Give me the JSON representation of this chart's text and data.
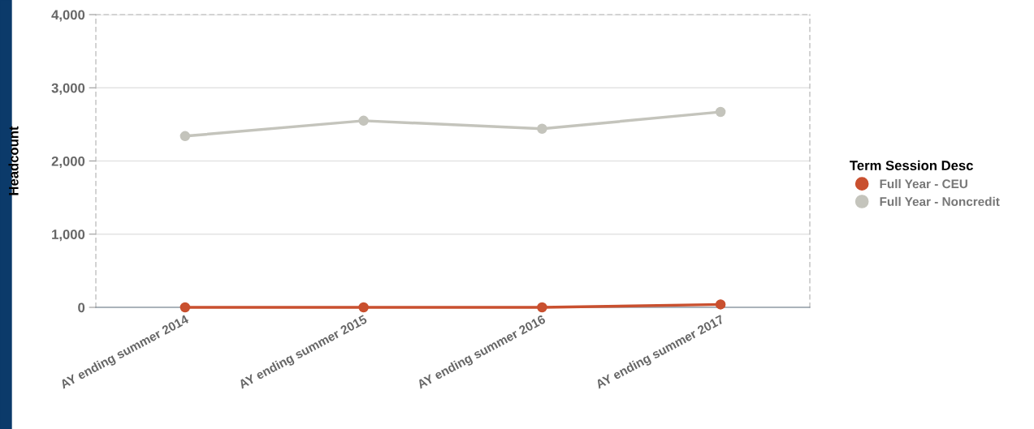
{
  "chart_data": {
    "type": "line",
    "ylabel": "Headcount",
    "legend_title": "Term Session Desc",
    "legend": "right",
    "grid": "y",
    "marker": "circle",
    "line_style": "solid",
    "categories": [
      "AY ending summer 2014",
      "AY ending summer 2015",
      "AY ending summer 2016",
      "AY ending summer 2017"
    ],
    "ylim": [
      0,
      4000
    ],
    "yticks": [
      {
        "value": 0,
        "label": "0"
      },
      {
        "value": 1000,
        "label": "1,000"
      },
      {
        "value": 2000,
        "label": "2,000"
      },
      {
        "value": 3000,
        "label": "3,000"
      },
      {
        "value": 4000,
        "label": "4,000"
      }
    ],
    "series": [
      {
        "name": "Full Year - CEU",
        "color": "#c9502f",
        "values": [
          0,
          0,
          0,
          40
        ]
      },
      {
        "name": "Full Year - Noncredit",
        "color": "#c4c4bc",
        "values": [
          2340,
          2550,
          2440,
          2670
        ]
      }
    ]
  }
}
